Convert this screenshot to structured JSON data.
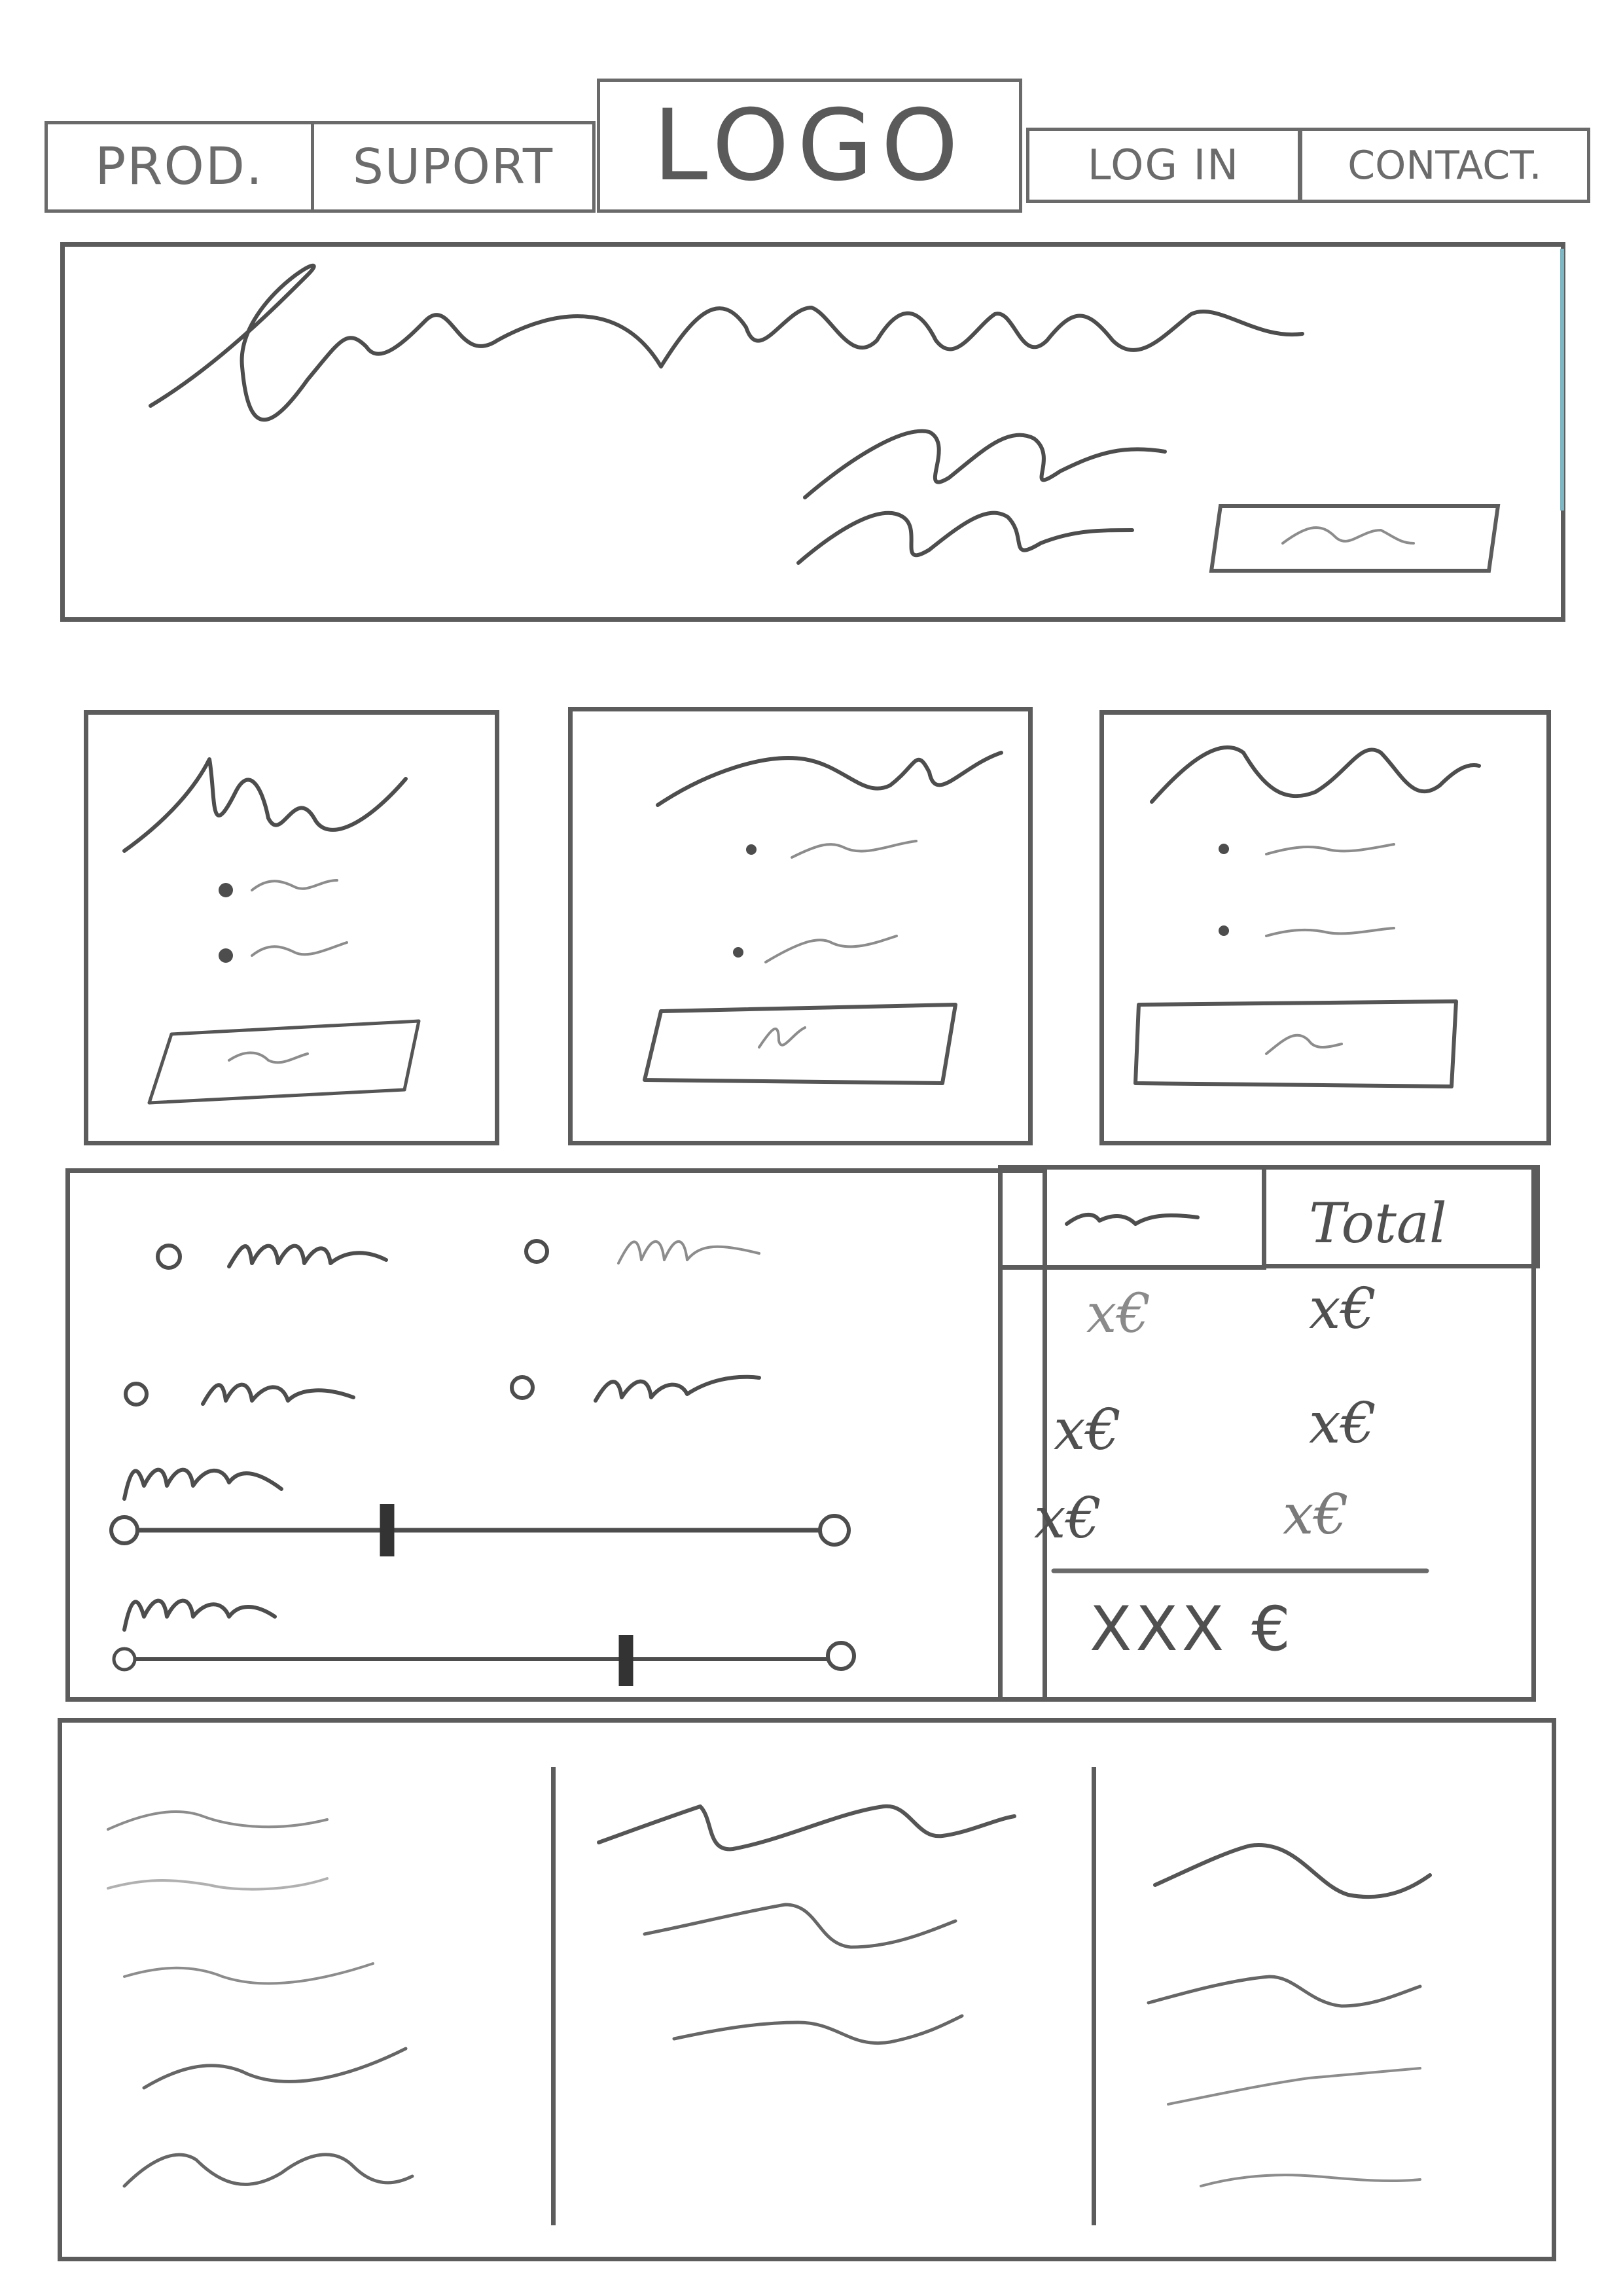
{
  "nav": {
    "items": [
      {
        "label": "PROD."
      },
      {
        "label": "SUPORT"
      },
      {
        "label": "LOG IN"
      },
      {
        "label": "CONTACT."
      }
    ],
    "logo": "LOGO"
  },
  "table": {
    "header_total": "Total",
    "rows": [
      {
        "col1": "x€",
        "col2": "x€"
      },
      {
        "col1": "x€",
        "col2": "x€"
      },
      {
        "col1": "x€",
        "col2": "x€"
      }
    ],
    "total_value": "XXX €"
  },
  "sliders": [
    {
      "value": 0.37
    },
    {
      "value": 0.7
    }
  ],
  "colors": {
    "stroke": "#4d4d4d",
    "accent_edge": "#7fb8c4"
  }
}
